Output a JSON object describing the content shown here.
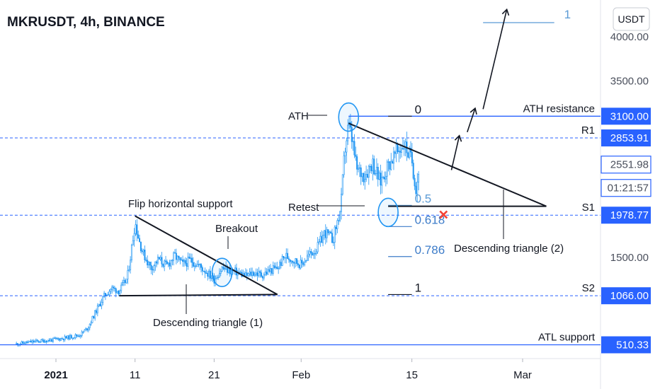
{
  "chart_data": {
    "type": "candlestick",
    "title": "MKRUSDT, 4h, BINANCE",
    "y_unit": "USDT",
    "ylim": [
      330,
      4400
    ],
    "y_ticks": [
      4000,
      3500,
      1500
    ],
    "y_tick_labels": [
      "4000.00",
      "3500.00",
      "1500.00"
    ],
    "x_ticks": [
      {
        "label": "2021",
        "date": "2021-01-01",
        "bold": true
      },
      {
        "label": "11",
        "date": "2021-01-11",
        "bold": false
      },
      {
        "label": "21",
        "date": "2021-01-21",
        "bold": false
      },
      {
        "label": "Feb",
        "date": "2021-02-01",
        "bold": false
      },
      {
        "label": "15",
        "date": "2021-02-15",
        "bold": false
      },
      {
        "label": "Mar",
        "date": "2021-03-01",
        "bold": false
      }
    ],
    "price_path": [
      [
        "2020-12-27",
        520
      ],
      [
        "2020-12-29",
        545
      ],
      [
        "2020-12-31",
        560
      ],
      [
        "2021-01-02",
        585
      ],
      [
        "2021-01-04",
        620
      ],
      [
        "2021-01-05",
        700
      ],
      [
        "2021-01-06",
        880
      ],
      [
        "2021-01-07",
        1050
      ],
      [
        "2021-01-08",
        1150
      ],
      [
        "2021-01-09",
        1120
      ],
      [
        "2021-01-10",
        1260
      ],
      [
        "2021-01-10T12",
        1560
      ],
      [
        "2021-01-11",
        1900
      ],
      [
        "2021-01-11T12",
        1700
      ],
      [
        "2021-01-12",
        1550
      ],
      [
        "2021-01-13",
        1380
      ],
      [
        "2021-01-14",
        1480
      ],
      [
        "2021-01-15",
        1400
      ],
      [
        "2021-01-16",
        1520
      ],
      [
        "2021-01-17",
        1420
      ],
      [
        "2021-01-18",
        1470
      ],
      [
        "2021-01-19",
        1410
      ],
      [
        "2021-01-20",
        1340
      ],
      [
        "2021-01-21",
        1250
      ],
      [
        "2021-01-22",
        1380
      ],
      [
        "2021-01-23",
        1350
      ],
      [
        "2021-01-24",
        1330
      ],
      [
        "2021-01-25",
        1290
      ],
      [
        "2021-01-26",
        1330
      ],
      [
        "2021-01-27",
        1300
      ],
      [
        "2021-01-28",
        1350
      ],
      [
        "2021-01-29",
        1380
      ],
      [
        "2021-01-30",
        1520
      ],
      [
        "2021-02-01",
        1420
      ],
      [
        "2021-02-02",
        1530
      ],
      [
        "2021-02-03",
        1600
      ],
      [
        "2021-02-04",
        1790
      ],
      [
        "2021-02-05",
        1700
      ],
      [
        "2021-02-06",
        2050
      ],
      [
        "2021-02-06T12",
        2700
      ],
      [
        "2021-02-07",
        3000
      ],
      [
        "2021-02-07T12",
        2800
      ],
      [
        "2021-02-08",
        2500
      ],
      [
        "2021-02-09",
        2430
      ],
      [
        "2021-02-10",
        2580
      ],
      [
        "2021-02-11",
        2350
      ],
      [
        "2021-02-12",
        2550
      ],
      [
        "2021-02-13",
        2680
      ],
      [
        "2021-02-14",
        2790
      ],
      [
        "2021-02-15",
        2600
      ],
      [
        "2021-02-15T12",
        2280
      ],
      [
        "2021-02-16",
        2551.98
      ]
    ],
    "candle_color": "#2196f3",
    "horizontal_levels": [
      {
        "label": "ATH resistance",
        "value": 3100.0,
        "axis_label": "3100.00",
        "style": "solid",
        "color": "#2962ff"
      },
      {
        "label": "R1",
        "value": 2853.91,
        "axis_label": "2853.91",
        "style": "dashed",
        "color": "#2962ff"
      },
      {
        "label": "S1",
        "value": 1978.77,
        "axis_label": "1978.77",
        "style": "dashed",
        "color": "#2962ff"
      },
      {
        "label": "S2",
        "value": 1066.0,
        "axis_label": "1066.00",
        "style": "dashed",
        "color": "#2962ff"
      },
      {
        "label": "ATL support",
        "value": 510.33,
        "axis_label": "510.33",
        "style": "solid",
        "color": "#2962ff"
      }
    ],
    "current_price": {
      "value": 2551.98,
      "label": "2551.98",
      "countdown": "01:21:57"
    },
    "fibonacci": [
      {
        "ratio": "0",
        "value": 3100,
        "color": "#131722"
      },
      {
        "ratio": "0.5",
        "value": 2090,
        "color": "#5b9bd5"
      },
      {
        "ratio": "0.618",
        "value": 1850,
        "color": "#3d7cc9"
      },
      {
        "ratio": "0.786",
        "value": 1510,
        "color": "#3d7cc9"
      },
      {
        "ratio": "1",
        "value": 1080,
        "color": "#131722"
      }
    ],
    "extension_level": {
      "ratio": "1",
      "value": 4160
    },
    "trendlines": [
      {
        "name": "triangle-1-top",
        "points": [
          [
            "2021-01-11",
            1970
          ],
          [
            "2021-01-29",
            1080
          ]
        ]
      },
      {
        "name": "triangle-1-base",
        "points": [
          [
            "2021-01-09",
            1066
          ],
          [
            "2021-01-29",
            1080
          ]
        ]
      },
      {
        "name": "triangle-2-top",
        "points": [
          [
            "2021-02-07",
            3020
          ],
          [
            "2021-03-04",
            2080
          ]
        ]
      },
      {
        "name": "triangle-2-base",
        "points": [
          [
            "2021-02-12",
            2080
          ],
          [
            "2021-03-04",
            2080
          ]
        ]
      }
    ],
    "arrows": [
      {
        "name": "arrow-1",
        "from": [
          "2021-02-20",
          2490
        ],
        "to": [
          "2021-02-21",
          2880
        ]
      },
      {
        "name": "arrow-2",
        "from": [
          "2021-02-22",
          2920
        ],
        "to": [
          "2021-02-23",
          3190
        ]
      },
      {
        "name": "arrow-3",
        "from": [
          "2021-02-24",
          3180
        ],
        "to": [
          "2021-02-27",
          4310
        ]
      }
    ],
    "circles": [
      {
        "name": "ath-circle",
        "at": [
          "2021-02-07",
          3090
        ]
      },
      {
        "name": "retest-circle",
        "at": [
          "2021-02-12",
          2010
        ]
      },
      {
        "name": "breakout-circle",
        "at": [
          "2021-01-22",
          1330
        ]
      }
    ],
    "cross": {
      "at": [
        "2021-02-19",
        1985
      ],
      "color": "#f44336"
    },
    "annotations": {
      "ath": "ATH",
      "retest": "Retest",
      "flip": "Flip horizontal support",
      "breakout": "Breakout",
      "triangle1": "Descending triangle (1)",
      "triangle2": "Descending triangle (2)"
    }
  }
}
